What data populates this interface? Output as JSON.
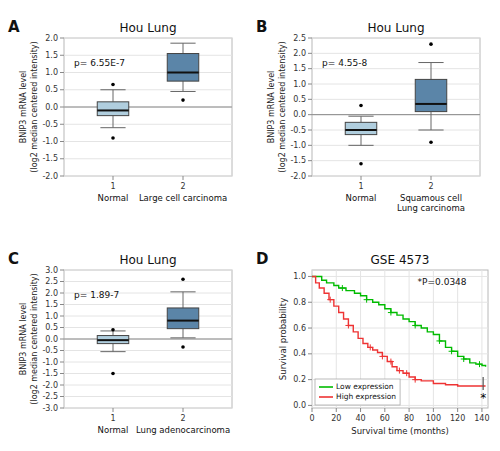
{
  "chart_data": [
    {
      "type": "box",
      "title": "Hou Lung",
      "panel_label": "A",
      "annotation": "p= 6.55E-7",
      "categories": [
        "Normal",
        "Large cell carcinoma"
      ],
      "ylabel": "BNIP3 mRNA level\n(log2 median centered intensity)",
      "xlim": [
        0.3,
        2.7
      ],
      "xticks": [
        1,
        2
      ],
      "ylim": [
        -2.0,
        2.0
      ],
      "yticks": [
        {
          "value": -2.0,
          "label": "-2.0"
        },
        -1.5,
        {
          "value": -1.0,
          "label": "-1.0"
        },
        -0.5,
        {
          "value": 0.0,
          "label": "0.0"
        },
        0.5,
        {
          "value": 1.0,
          "label": "1.0"
        },
        1.5,
        {
          "value": 2.0,
          "label": "2.0"
        }
      ],
      "hline": 0.0,
      "boxes": [
        {
          "q1": -0.25,
          "median": -0.1,
          "q3": 0.15,
          "whisker_low": -0.6,
          "whisker_high": 0.5,
          "outliers_low": [
            -0.9
          ],
          "outliers_high": [
            0.65
          ]
        },
        {
          "q1": 0.75,
          "median": 1.0,
          "q3": 1.55,
          "whisker_low": 0.45,
          "whisker_high": 1.85,
          "outliers_low": [
            0.2
          ],
          "outliers_high": []
        }
      ],
      "colors": [
        "#b0cede",
        "#5b85a8"
      ],
      "grid": "y"
    },
    {
      "type": "box",
      "title": "Hou Lung",
      "panel_label": "B",
      "annotation": "p= 4.55-8",
      "categories": [
        "Normal",
        "Squamous cell\nLung carcinoma"
      ],
      "ylabel": "BNIP3 mRNA level\n(log2 median centered intensity)",
      "xlim": [
        0.3,
        2.7
      ],
      "xticks": [
        1,
        2
      ],
      "ylim": [
        -2.0,
        2.5
      ],
      "yticks": [
        {
          "value": -2.0,
          "label": "-2.0"
        },
        -1.5,
        {
          "value": -1.0,
          "label": "-1.0"
        },
        -0.5,
        {
          "value": 0.0,
          "label": "0.0"
        },
        0.5,
        {
          "value": 1.0,
          "label": "1.0"
        },
        1.5,
        {
          "value": 2.0,
          "label": "2.0"
        },
        2.5
      ],
      "hline": 0.0,
      "boxes": [
        {
          "q1": -0.65,
          "median": -0.5,
          "q3": -0.25,
          "whisker_low": -1.0,
          "whisker_high": -0.05,
          "outliers_low": [
            -1.6
          ],
          "outliers_high": [
            0.3
          ]
        },
        {
          "q1": 0.1,
          "median": 0.35,
          "q3": 1.15,
          "whisker_low": -0.5,
          "whisker_high": 1.7,
          "outliers_low": [
            -0.9
          ],
          "outliers_high": [
            2.3
          ]
        }
      ],
      "colors": [
        "#b0cede",
        "#5b85a8"
      ],
      "grid": "y"
    },
    {
      "type": "box",
      "title": "Hou Lung",
      "panel_label": "C",
      "annotation": "p= 1.89-7",
      "categories": [
        "Normal",
        "Lung adenocarcinoma"
      ],
      "ylabel": "BNIP3 mRNA level\n(log2 median centered intensity)",
      "xlim": [
        0.3,
        2.7
      ],
      "xticks": [
        1,
        2
      ],
      "ylim": [
        -3.0,
        3.0
      ],
      "yticks": [
        {
          "value": -3.0,
          "label": "-3.0"
        },
        -2.5,
        {
          "value": -2.0,
          "label": "-2.0"
        },
        -1.5,
        {
          "value": -1.0,
          "label": "-1.0"
        },
        -0.5,
        {
          "value": 0.0,
          "label": "0.0"
        },
        0.5,
        {
          "value": 1.0,
          "label": "1.0"
        },
        1.5,
        {
          "value": 2.0,
          "label": "2.0"
        },
        2.5,
        {
          "value": 3.0,
          "label": "3.0"
        }
      ],
      "hline": 0.0,
      "boxes": [
        {
          "q1": -0.2,
          "median": -0.05,
          "q3": 0.15,
          "whisker_low": -0.55,
          "whisker_high": 0.35,
          "outliers_low": [
            -1.5
          ],
          "outliers_high": [
            0.4
          ]
        },
        {
          "q1": 0.45,
          "median": 0.8,
          "q3": 1.35,
          "whisker_low": 0.05,
          "whisker_high": 2.05,
          "outliers_low": [
            -0.35
          ],
          "outliers_high": [
            2.6
          ]
        }
      ],
      "colors": [
        "#b0cede",
        "#5b85a8"
      ],
      "grid": "y"
    },
    {
      "type": "step",
      "title": "GSE 4573",
      "panel_label": "D",
      "annotation": "*P=0.0348",
      "xlabel": "Survival time (months)",
      "ylabel": "Survival probability",
      "xlim": [
        0,
        145
      ],
      "ylim": [
        -0.02,
        1.05
      ],
      "xticks": [
        0,
        20,
        40,
        60,
        80,
        100,
        120,
        140
      ],
      "yticks": [
        {
          "value": 0.0,
          "label": "0.0"
        },
        0.2,
        0.4,
        0.6,
        0.8,
        {
          "value": 1.0,
          "label": "1.0"
        }
      ],
      "grid": true,
      "legend": "lower left",
      "series": [
        {
          "name": "Low expression",
          "color": "#00bb00",
          "x": [
            0,
            8,
            12,
            18,
            22,
            28,
            35,
            40,
            45,
            50,
            55,
            60,
            65,
            70,
            75,
            80,
            85,
            90,
            95,
            100,
            105,
            110,
            115,
            120,
            125,
            130,
            135,
            140,
            143
          ],
          "values": [
            1.0,
            0.97,
            0.95,
            0.93,
            0.91,
            0.89,
            0.87,
            0.85,
            0.82,
            0.8,
            0.78,
            0.75,
            0.72,
            0.7,
            0.67,
            0.65,
            0.62,
            0.6,
            0.57,
            0.55,
            0.5,
            0.45,
            0.42,
            0.38,
            0.36,
            0.33,
            0.32,
            0.31,
            0.3
          ],
          "censor_x": [
            25,
            45,
            65,
            85,
            105,
            115,
            125,
            138
          ],
          "censor_values": [
            0.91,
            0.82,
            0.72,
            0.62,
            0.5,
            0.42,
            0.36,
            0.32
          ]
        },
        {
          "name": "High expression",
          "color": "#ee3333",
          "x": [
            0,
            3,
            6,
            10,
            14,
            18,
            22,
            26,
            30,
            34,
            38,
            42,
            46,
            50,
            54,
            58,
            62,
            66,
            70,
            75,
            80,
            85,
            90,
            100,
            110,
            120,
            130,
            140,
            143
          ],
          "values": [
            1.0,
            0.95,
            0.91,
            0.87,
            0.82,
            0.77,
            0.72,
            0.67,
            0.62,
            0.57,
            0.52,
            0.48,
            0.45,
            0.43,
            0.41,
            0.38,
            0.34,
            0.3,
            0.27,
            0.25,
            0.22,
            0.2,
            0.19,
            0.17,
            0.16,
            0.15,
            0.15,
            0.15,
            0.15
          ],
          "censor_x": [
            15,
            30,
            48,
            58,
            65,
            72,
            78,
            85
          ],
          "censor_values": [
            0.82,
            0.62,
            0.45,
            0.38,
            0.34,
            0.27,
            0.25,
            0.2
          ]
        }
      ],
      "censor_bar": {
        "x": 141,
        "y": [
          0.12,
          0.22
        ],
        "label": "*"
      }
    }
  ]
}
